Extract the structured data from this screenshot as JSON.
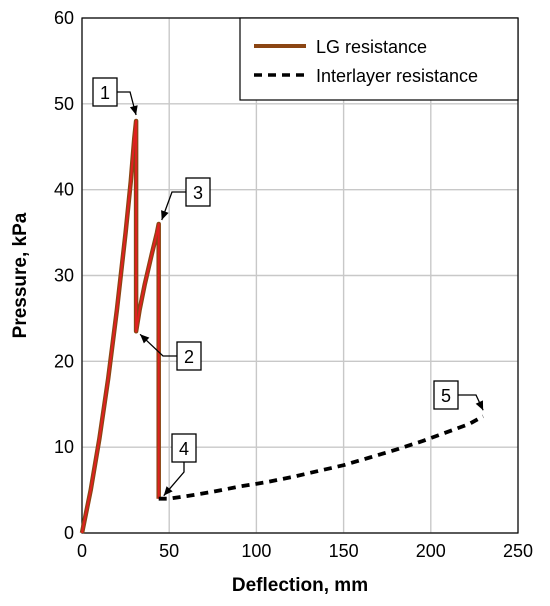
{
  "chart_data": {
    "type": "line",
    "title": "",
    "xlabel": "Deflection, mm",
    "ylabel": "Pressure, kPa",
    "xlim": [
      0,
      250
    ],
    "ylim": [
      0,
      60
    ],
    "xticks": [
      0,
      50,
      100,
      150,
      200,
      250
    ],
    "yticks": [
      0,
      10,
      20,
      30,
      40,
      50,
      60
    ],
    "grid": true,
    "legend": {
      "placement": "top-right"
    },
    "colors": {
      "lg": "#8b4513",
      "lg_highlight": "#e02020",
      "interlayer": "#000000",
      "grid": "#c8c8c8"
    },
    "series": [
      {
        "name": "LG resistance",
        "style": "solid",
        "x": [
          0,
          5,
          10,
          15,
          20,
          25,
          28,
          30,
          31,
          31,
          33,
          36,
          40,
          43,
          44,
          44,
          44,
          44
        ],
        "y": [
          0,
          5,
          11,
          18,
          26,
          35,
          41,
          46,
          48,
          23.5,
          26,
          29,
          32.5,
          35,
          36,
          20,
          8,
          4
        ]
      },
      {
        "name": "Interlayer resistance",
        "style": "dashed",
        "x": [
          44,
          50,
          60,
          75,
          90,
          105,
          120,
          135,
          150,
          165,
          180,
          195,
          210,
          222,
          230
        ],
        "y": [
          4,
          4,
          4.3,
          4.8,
          5.4,
          5.9,
          6.5,
          7.2,
          7.9,
          8.8,
          9.7,
          10.7,
          11.8,
          12.7,
          13.6
        ]
      }
    ],
    "annotations": [
      {
        "label": "1",
        "target": [
          31,
          48
        ]
      },
      {
        "label": "2",
        "target": [
          31,
          23.5
        ]
      },
      {
        "label": "3",
        "target": [
          44,
          36
        ]
      },
      {
        "label": "4",
        "target": [
          44,
          4
        ]
      },
      {
        "label": "5",
        "target": [
          230,
          13.6
        ]
      }
    ]
  }
}
